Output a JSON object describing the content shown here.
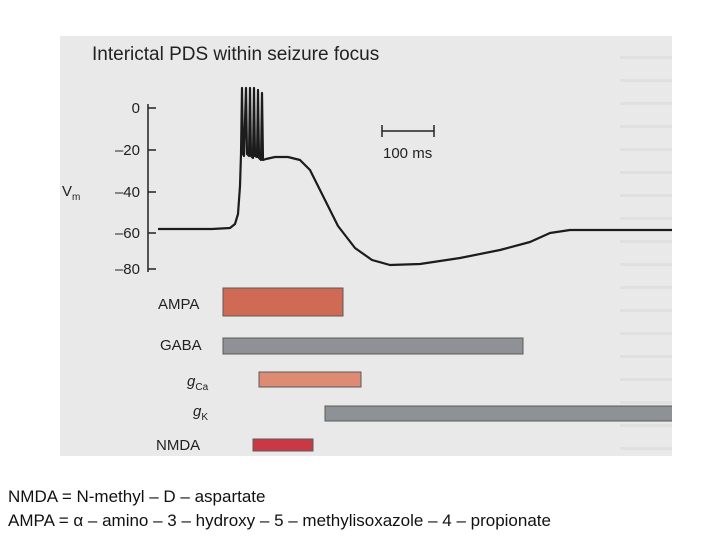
{
  "figure": {
    "title": "Interictal PDS within seizure focus",
    "y_axis_label": "V",
    "y_axis_label_sub": "m",
    "y_ticks": [
      "0",
      "–20",
      "–40",
      "–60",
      "–80"
    ],
    "scale_bar_label": "100 ms",
    "bars": [
      {
        "name": "AMPA",
        "sub": "",
        "color": "#cf6a55",
        "start": 0.0,
        "end": 0.2
      },
      {
        "name": "GABA",
        "sub": "",
        "color": "#8e9296",
        "start": 0.0,
        "end": 0.5
      },
      {
        "name": "g",
        "sub": "Ca",
        "color": "#dd8b72",
        "start": 0.06,
        "end": 0.23
      },
      {
        "name": "g",
        "sub": "K",
        "color": "#8e9296",
        "start": 0.17,
        "end": 0.81
      },
      {
        "name": "NMDA",
        "sub": "",
        "color": "#c93844",
        "start": 0.05,
        "end": 0.15
      }
    ]
  },
  "caption": {
    "line1": "NMDA = N-methyl – D – aspartate",
    "line2": "AMPA  = α – amino – 3 – hydroxy – 5 – methylisoxazole – 4 – propionate"
  }
}
